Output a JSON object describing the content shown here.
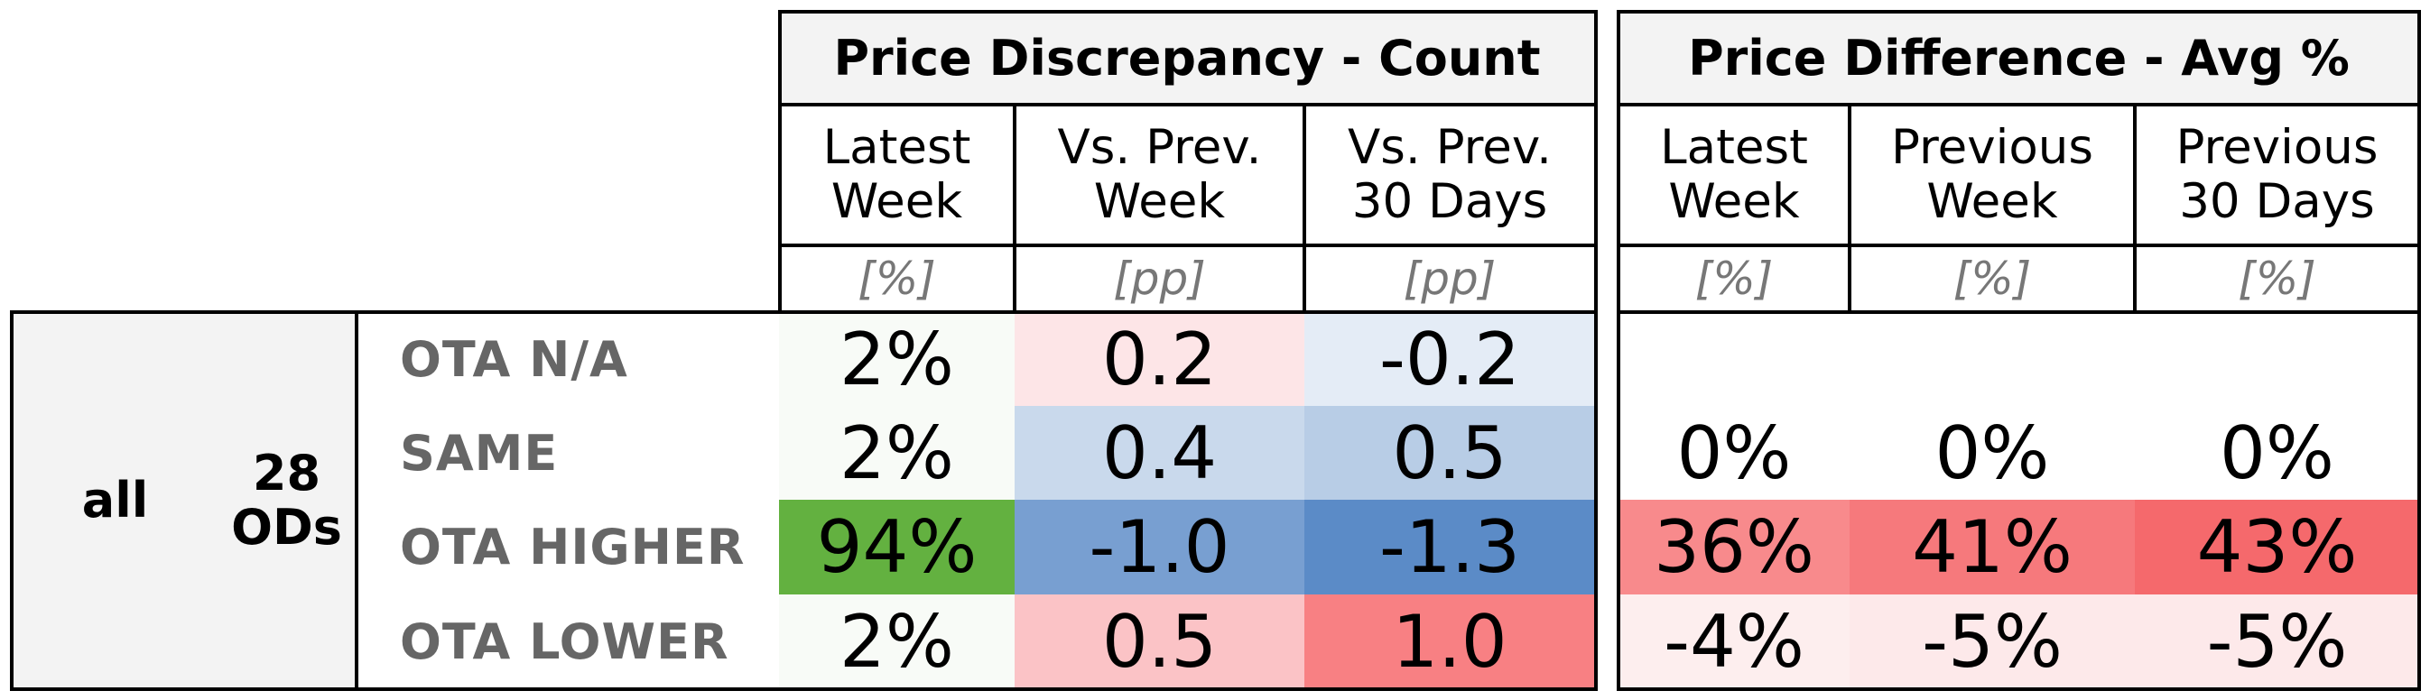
{
  "group": {
    "scope": "all",
    "count_line1": "28",
    "count_line2": "ODs"
  },
  "left_table": {
    "title": "Price Discrepancy - Count",
    "columns": [
      {
        "label": "Latest\nWeek",
        "unit": "[%]"
      },
      {
        "label": "Vs. Prev.\nWeek",
        "unit": "[pp]"
      },
      {
        "label": "Vs. Prev.\n30 Days",
        "unit": "[pp]"
      }
    ]
  },
  "right_table": {
    "title": "Price Difference - Avg %",
    "columns": [
      {
        "label": "Latest\nWeek",
        "unit": "[%]"
      },
      {
        "label": "Previous\nWeek",
        "unit": "[%]"
      },
      {
        "label": "Previous\n30 Days",
        "unit": "[%]"
      }
    ]
  },
  "rows": [
    {
      "label": "OTA N/A",
      "left": [
        {
          "value": "2%",
          "color": "#f8fbf7"
        },
        {
          "value": "0.2",
          "color": "#fde5e7"
        },
        {
          "value": "-0.2",
          "color": "#e4ecf6"
        }
      ],
      "right": [
        {
          "value": "",
          "color": "#ffffff"
        },
        {
          "value": "",
          "color": "#ffffff"
        },
        {
          "value": "",
          "color": "#ffffff"
        }
      ]
    },
    {
      "label": "SAME",
      "left": [
        {
          "value": "2%",
          "color": "#f8fbf7"
        },
        {
          "value": "0.4",
          "color": "#c9d9ec"
        },
        {
          "value": "0.5",
          "color": "#b8cde6"
        }
      ],
      "right": [
        {
          "value": "0%",
          "color": "#ffffff"
        },
        {
          "value": "0%",
          "color": "#ffffff"
        },
        {
          "value": "0%",
          "color": "#ffffff"
        }
      ]
    },
    {
      "label": "OTA HIGHER",
      "left": [
        {
          "value": "94%",
          "color": "#63b140"
        },
        {
          "value": "-1.0",
          "color": "#789fd1"
        },
        {
          "value": "-1.3",
          "color": "#5b8bc7"
        }
      ],
      "right": [
        {
          "value": "36%",
          "color": "#f88a8c"
        },
        {
          "value": "41%",
          "color": "#f6797c"
        },
        {
          "value": "43%",
          "color": "#f5696c"
        }
      ]
    },
    {
      "label": "OTA LOWER",
      "left": [
        {
          "value": "2%",
          "color": "#f8fbf7"
        },
        {
          "value": "0.5",
          "color": "#fbc3c6"
        },
        {
          "value": "1.0",
          "color": "#f88083"
        }
      ],
      "right": [
        {
          "value": "-4%",
          "color": "#fdeeee"
        },
        {
          "value": "-5%",
          "color": "#fde9ea"
        },
        {
          "value": "-5%",
          "color": "#fde9ea"
        }
      ]
    }
  ]
}
